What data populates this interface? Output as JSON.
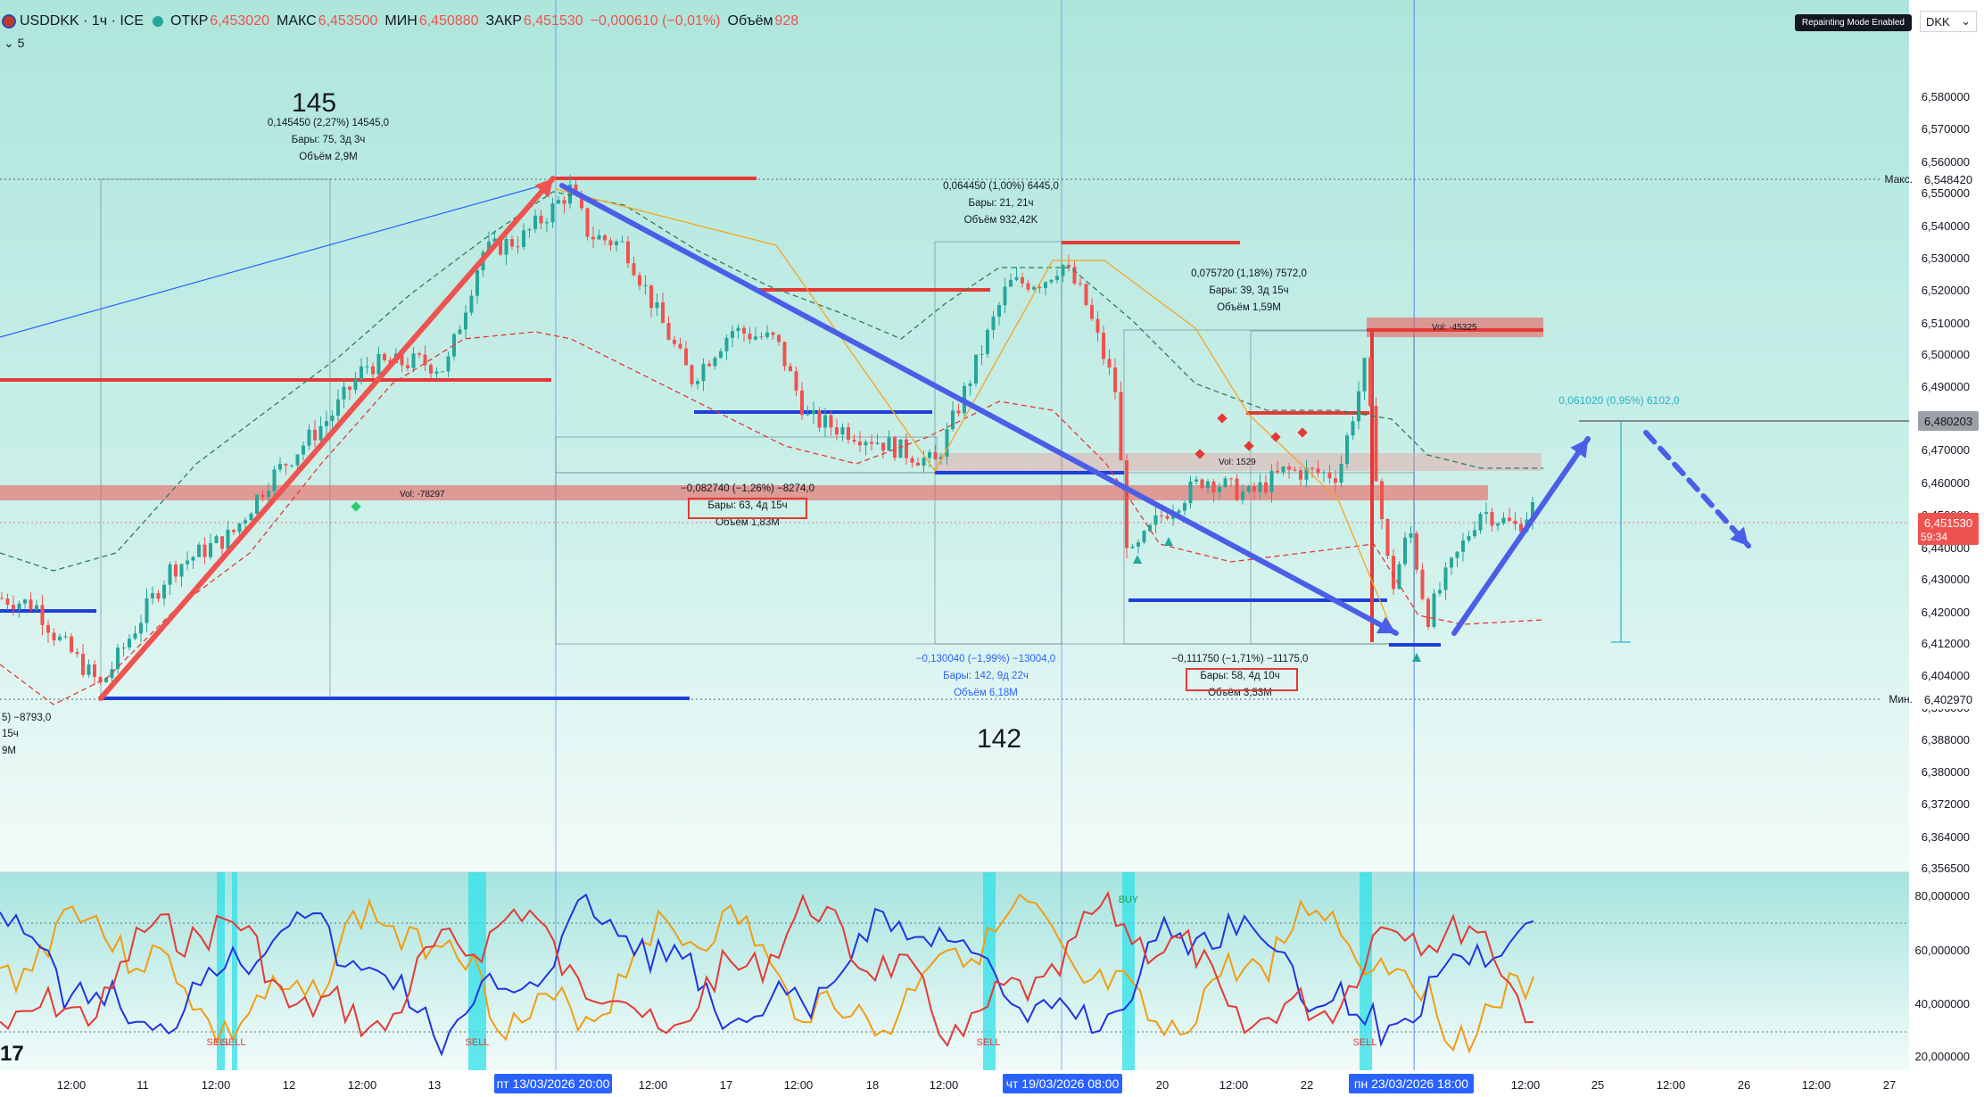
{
  "header": {
    "symbol": "USDDKK · 1ч · ICE",
    "open_label": "ОТКР",
    "open": "6,453020",
    "high_label": "МАКС",
    "high": "6,453500",
    "low_label": "МИН",
    "low": "6,450880",
    "close_label": "ЗАКР",
    "close": "6,451530",
    "change": "−0,000610 (−0,01%)",
    "volume_label": "Объём",
    "volume": "928",
    "indicators_count": "5"
  },
  "badge": "Repainting Mode Enabled",
  "currency": "DKK",
  "price_labels": [
    "6,580000",
    "6,570000",
    "6,560000",
    "6,550000",
    "6,540000",
    "6,530000",
    "6,520000",
    "6,510000",
    "6,500000",
    "6,490000",
    "6,480000",
    "6,470000",
    "6,460000",
    "6,450000",
    "6,440000",
    "6,430000",
    "6,420000",
    "6,412000",
    "6,404000",
    "6,396000",
    "6,388000",
    "6,380000",
    "6,372000",
    "6,364000",
    "6,356500"
  ],
  "max_label": "Макс.",
  "max_value": "6,548420",
  "min_label": "Мин.",
  "min_value": "6,402970",
  "target_value": "6,480203",
  "current_price": "6,451530",
  "countdown": "59:34",
  "osc_labels": [
    "80,000000",
    "60,000000",
    "40,000000",
    "20,000000"
  ],
  "time_labels": [
    "12:00",
    "11",
    "12:00",
    "12",
    "12:00",
    "13",
    "12:00",
    "17",
    "12:00",
    "18",
    "12:00",
    "20",
    "12:00",
    "22",
    "12:00",
    "25",
    "12:00",
    "26",
    "12:00",
    "27"
  ],
  "date_markers": [
    "пт 13/03/2026  20:00",
    "чт 19/03/2026  08:00",
    "пн 23/03/2026  18:00"
  ],
  "big_labels": [
    "145",
    "142"
  ],
  "measures": [
    {
      "l1": "0,145450 (2,27%) 14545,0",
      "l2": "Бары: 75, 3д 3ч",
      "l3": "Объём 2,9M"
    },
    {
      "l1": "0,064450 (1,00%) 6445,0",
      "l2": "Бары: 21, 21ч",
      "l3": "Объём 932,42K"
    },
    {
      "l1": "0,075720 (1,18%) 7572,0",
      "l2": "Бары: 39, 3д 15ч",
      "l3": "Объём 1,59M"
    },
    {
      "l1": "−0,082740 (−1,26%) −8274,0",
      "l2": "Бары: 63, 4д 15ч",
      "l3": "Объём 1,83M"
    },
    {
      "l1": "−0,130040 (−1,99%) −13004,0",
      "l2": "Бары: 142, 9д 22ч",
      "l3": "Объём 6,18M"
    },
    {
      "l1": "−0,111750 (−1,71%) −11175,0",
      "l2": "Бары: 58, 4д 10ч",
      "l3": "Объём 3,53M"
    },
    {
      "l1": "0,061020 (0,95%) 6102,0",
      "l2": "",
      "l3": ""
    }
  ],
  "left_cut": {
    "l1": "5) −8793,0",
    "l2": "15ч",
    "l3": "9M"
  },
  "vol_labels": [
    "Vol: -78297",
    "Vol: -45325",
    "Vol: 1529"
  ],
  "signals": {
    "sell": "SELL",
    "buy": "BUY"
  },
  "logo": "17"
}
